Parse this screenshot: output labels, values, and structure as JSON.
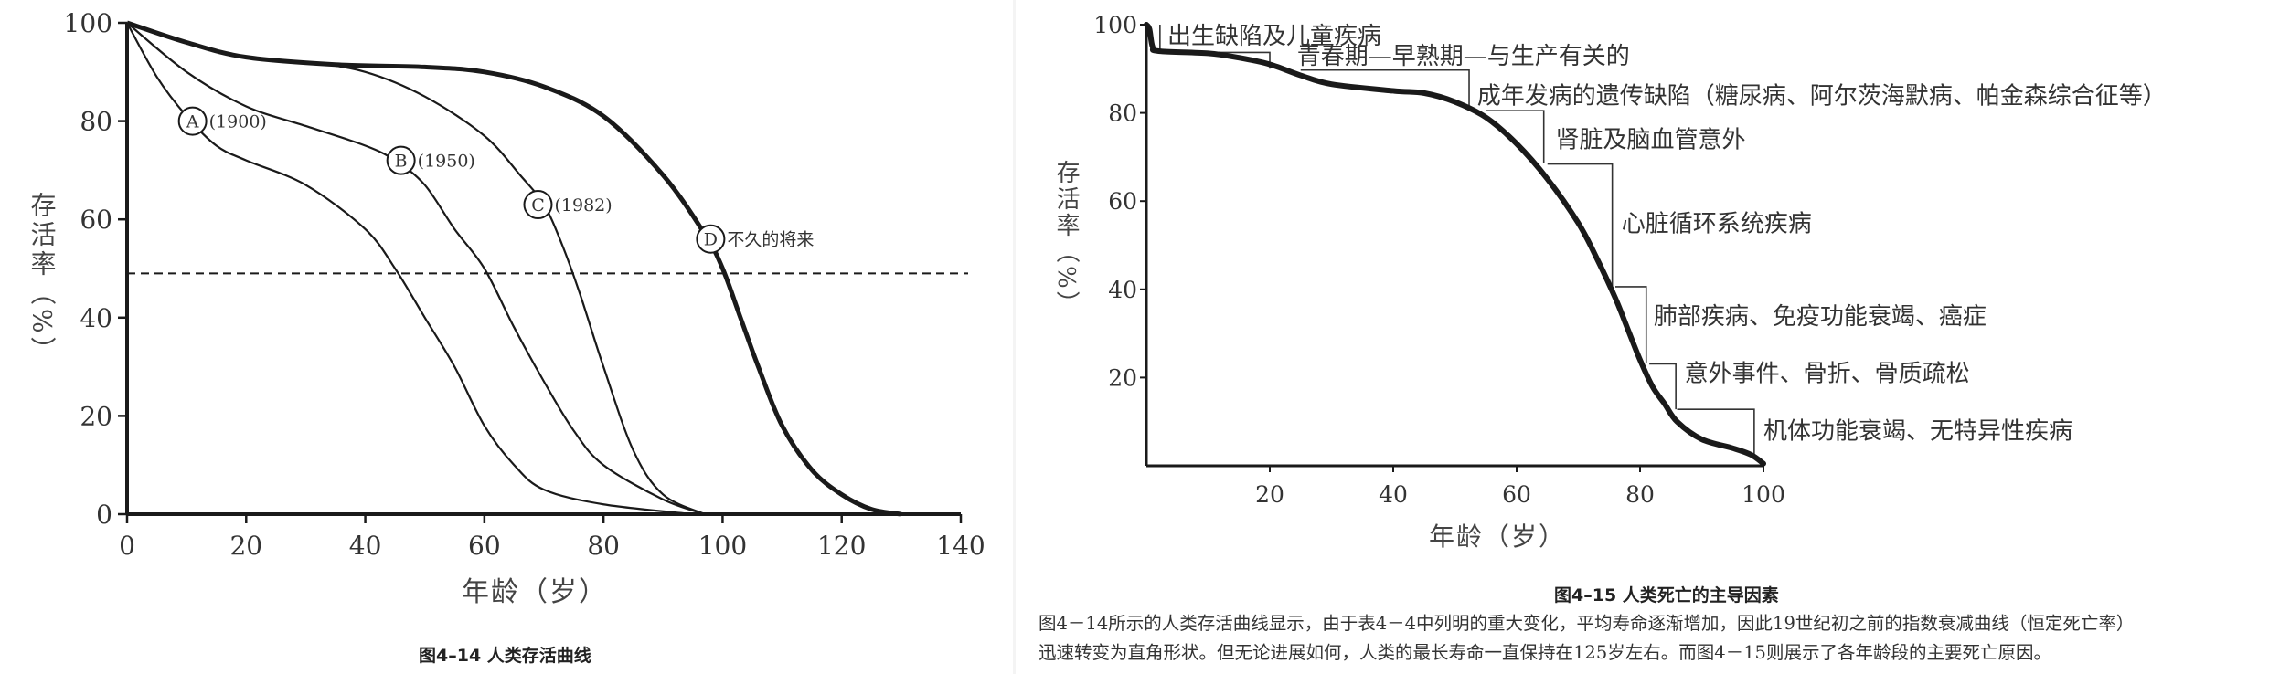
{
  "chart_data": [
    {
      "type": "line",
      "title": "",
      "caption": "图4–14 人类存活曲线",
      "xlabel": "年龄（岁）",
      "ylabel": "存活率（%）",
      "xlim": [
        0,
        140
      ],
      "ylim": [
        0,
        100
      ],
      "xticks": [
        0,
        20,
        40,
        60,
        80,
        100,
        120,
        140
      ],
      "yticks": [
        0,
        20,
        40,
        60,
        80,
        100
      ],
      "grid": false,
      "reference_line": {
        "y": 49,
        "style": "dashed"
      },
      "series": [
        {
          "name": "A",
          "label": "(1900)",
          "label_at": [
            11,
            80
          ],
          "x": [
            0,
            5,
            10,
            15,
            20,
            30,
            40,
            45,
            50,
            55,
            60,
            65,
            70,
            80,
            95
          ],
          "y": [
            100,
            89,
            81,
            75,
            72,
            67,
            58,
            50,
            40,
            30,
            18,
            10,
            5,
            2,
            0
          ]
        },
        {
          "name": "B",
          "label": "(1950)",
          "label_at": [
            46,
            72
          ],
          "x": [
            0,
            10,
            20,
            30,
            40,
            45,
            50,
            55,
            60,
            65,
            70,
            75,
            80,
            90,
            97
          ],
          "y": [
            100,
            90,
            83,
            79,
            75,
            72,
            67,
            58,
            50,
            38,
            27,
            17,
            10,
            3,
            0
          ]
        },
        {
          "name": "C",
          "label": "(1982)",
          "label_at": [
            69,
            63
          ],
          "x": [
            0,
            10,
            20,
            30,
            40,
            50,
            60,
            66,
            70,
            73,
            76,
            80,
            85,
            90,
            97
          ],
          "y": [
            100,
            96,
            93,
            92,
            90,
            85,
            77,
            69,
            63,
            55,
            45,
            30,
            13,
            4,
            0
          ]
        },
        {
          "name": "D",
          "label": "不久的将来",
          "label_at": [
            98,
            56
          ],
          "thick": true,
          "x": [
            0,
            10,
            20,
            35,
            50,
            60,
            70,
            80,
            90,
            97,
            100,
            103,
            106,
            110,
            115,
            120,
            125,
            130
          ],
          "y": [
            100,
            96,
            93,
            91.5,
            91,
            90,
            87,
            81,
            69,
            57,
            50,
            40,
            30,
            18,
            9,
            4,
            1,
            0
          ]
        }
      ]
    },
    {
      "type": "line",
      "title": "",
      "caption": "图4–15 人类死亡的主导因素",
      "xlabel": "年龄（岁）",
      "ylabel": "存活率（%）",
      "xlim": [
        0,
        100
      ],
      "ylim": [
        0,
        100
      ],
      "xticks": [
        20,
        40,
        60,
        80,
        100
      ],
      "yticks": [
        20,
        40,
        60,
        80,
        100
      ],
      "grid": false,
      "series": [
        {
          "name": "survival",
          "x": [
            0,
            0.5,
            1,
            2,
            10,
            15,
            20,
            25,
            30,
            40,
            45,
            50,
            55,
            60,
            65,
            70,
            73,
            76,
            78,
            80,
            82,
            84,
            86,
            90,
            95,
            98,
            100
          ],
          "y": [
            100,
            99,
            95,
            94,
            93.5,
            92.5,
            91,
            88.5,
            86.5,
            85,
            84.5,
            82.5,
            79,
            73,
            65,
            55,
            47,
            38,
            31,
            24,
            18,
            14,
            10,
            6,
            4,
            2.5,
            0.5
          ]
        }
      ],
      "annotations": [
        {
          "text": "出生缺陷及儿童疾病",
          "from_age": 2.2,
          "to_age": 2.2,
          "top": 100,
          "bottom": 94.2,
          "text_age": 3.4,
          "text_y": 97.5
        },
        {
          "text": "青春期—早熟期—与生产有关的",
          "from_age": 11.7,
          "to_age": 20,
          "top": 93.7,
          "bottom": 90,
          "text_age": 24.4,
          "text_y": 93
        },
        {
          "text": "成年发病的遗传缺陷（糖尿病、阿尔茨海默病、帕金森综合征等）",
          "from_age": 25,
          "to_age": 52.3,
          "top": 89.7,
          "bottom": 81,
          "text_age": 53.6,
          "text_y": 84
        },
        {
          "text": "肾脏及脑血管意外",
          "from_age": 55,
          "to_age": 64.4,
          "top": 80.5,
          "bottom": 68.7,
          "text_age": 66.3,
          "text_y": 74
        },
        {
          "text": "心脏循环系统疾病",
          "from_age": 65,
          "to_age": 75.5,
          "top": 68.4,
          "bottom": 40.7,
          "text_age": 77,
          "text_y": 55
        },
        {
          "text": "肺部疾病、免疫功能衰竭、癌症",
          "from_age": 76,
          "to_age": 81,
          "top": 40.6,
          "bottom": 23.4,
          "text_age": 82.2,
          "text_y": 34
        },
        {
          "text": "意外事件、骨折、骨质疏松",
          "from_age": 81.5,
          "to_age": 85.8,
          "top": 23.1,
          "bottom": 12.8,
          "text_age": 87.2,
          "text_y": 21
        },
        {
          "text": "机体功能衰竭、无特异性疾病",
          "from_age": 86,
          "to_age": 98.5,
          "top": 12.8,
          "bottom": 2.7,
          "text_age": 100,
          "text_y": 8
        }
      ]
    }
  ],
  "paragraph": {
    "line1": "图4－14所示的人类存活曲线显示，由于表4－4中列明的重大变化，平均寿命逐渐增加，因此19世纪初之前的指数衰减曲线（恒定死亡率）",
    "line2": "迅速转变为直角形状。但无论进展如何，人类的最长寿命一直保持在125岁左右。而图4－15则展示了各年龄段的主要死亡原因。"
  },
  "colors": {
    "ink": "#1a1a1a",
    "text": "#333333"
  }
}
